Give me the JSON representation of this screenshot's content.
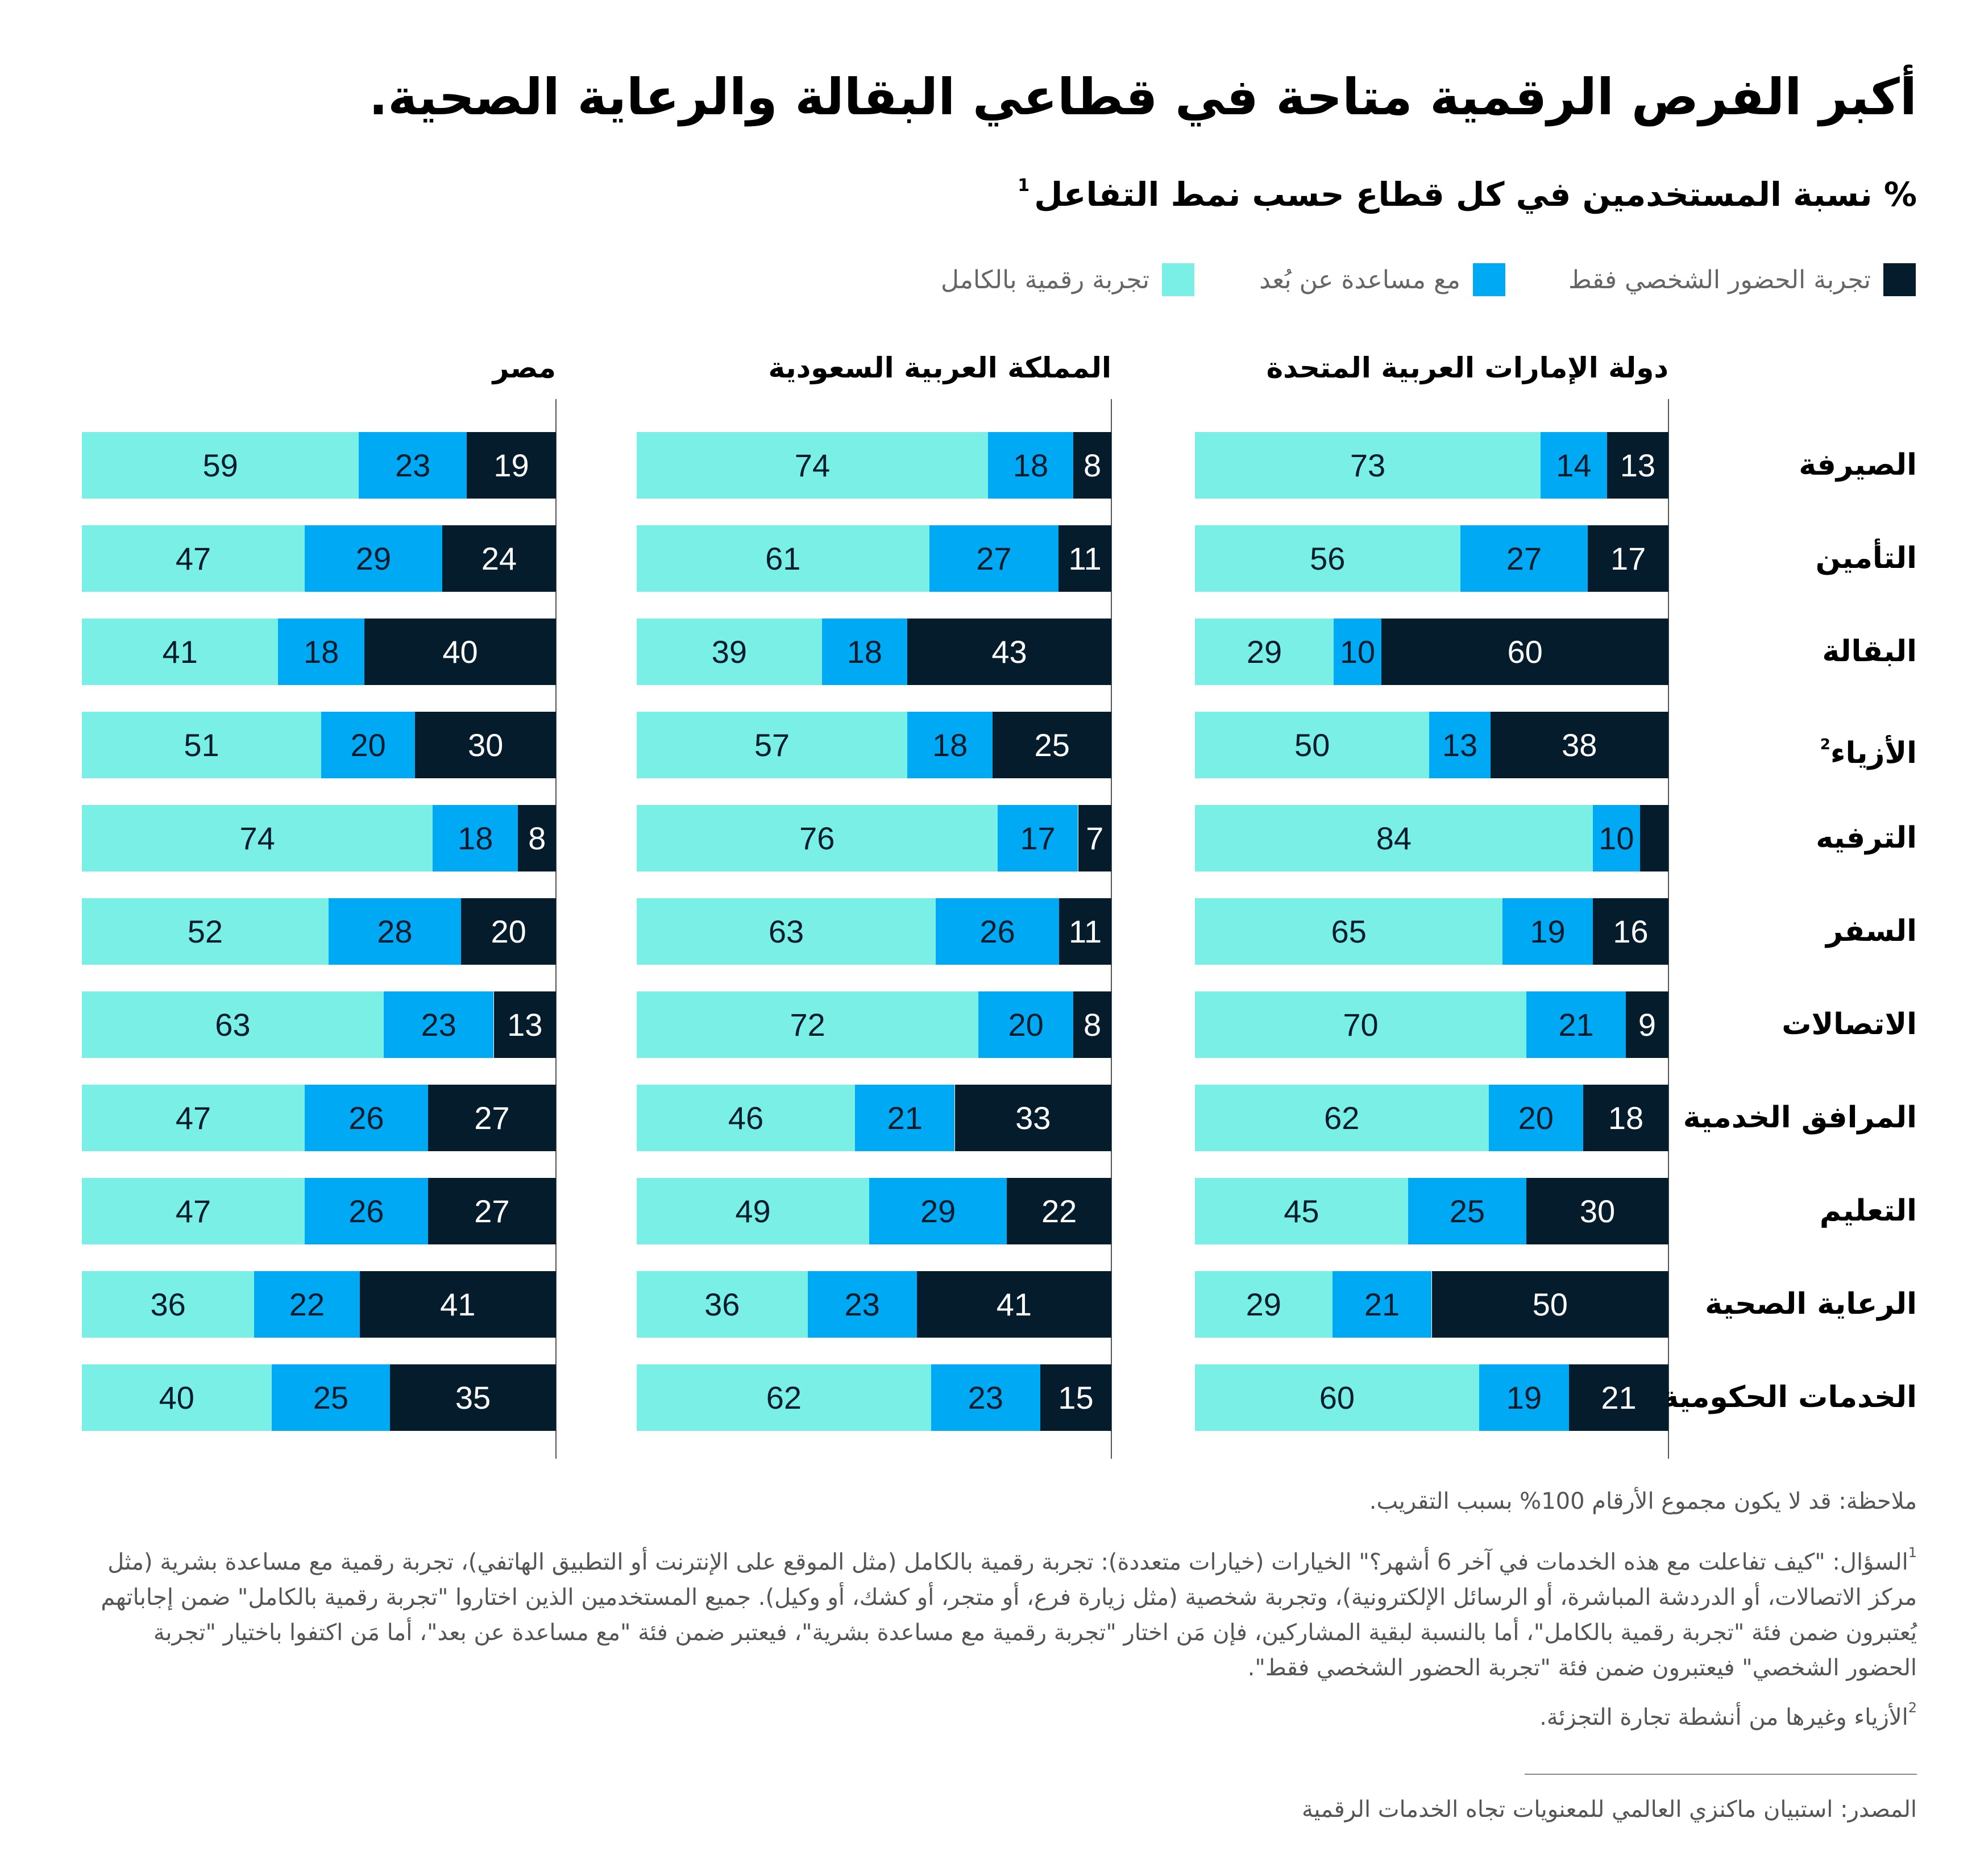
{
  "header": {
    "title": "أكبر الفرص الرقمية متاحة في قطاعي البقالة والرعاية الصحية.",
    "subtitle": "% نسبة المستخدمين في كل قطاع حسب نمط التفاعل",
    "subtitle_footnote_marker": "1"
  },
  "legend": [
    {
      "key": "in_person",
      "label": "تجربة الحضور الشخصي فقط",
      "color": "#051c2c"
    },
    {
      "key": "remote_assist",
      "label": "مع مساعدة عن بُعد",
      "color": "#00a9f4"
    },
    {
      "key": "fully_digital",
      "label": "تجربة رقمية بالكامل",
      "color": "#7aefe6"
    }
  ],
  "chart_data": {
    "type": "bar",
    "orientation": "horizontal",
    "stacked": true,
    "title": "أكبر الفرص الرقمية متاحة في قطاعي البقالة والرعاية الصحية.",
    "subtitle": "% نسبة المستخدمين في كل قطاع حسب نمط التفاعل",
    "xlim": [
      0,
      100
    ],
    "grid": false,
    "legend_position": "top-right",
    "categories": [
      "الصيرفة",
      "التأمين",
      "البقالة",
      "الأزياء",
      "الترفيه",
      "السفر",
      "الاتصالات",
      "المرافق الخدمية",
      "التعليم",
      "الرعاية الصحية",
      "الخدمات الحكومية"
    ],
    "category_footnotes": {
      "3": "2"
    },
    "series_names": [
      "تجربة رقمية بالكامل",
      "مع مساعدة عن بُعد",
      "تجربة الحضور الشخصي فقط"
    ],
    "panels": [
      {
        "name": "دولة الإمارات العربية المتحدة",
        "series": [
          {
            "name": "تجربة رقمية بالكامل",
            "values": [
              73,
              56,
              29,
              50,
              84,
              65,
              70,
              62,
              45,
              29,
              60
            ]
          },
          {
            "name": "مع مساعدة عن بُعد",
            "values": [
              14,
              27,
              10,
              13,
              10,
              19,
              21,
              20,
              25,
              21,
              19
            ]
          },
          {
            "name": "تجربة الحضور الشخصي فقط",
            "values": [
              13,
              17,
              60,
              38,
              null,
              16,
              9,
              18,
              30,
              50,
              21
            ]
          }
        ]
      },
      {
        "name": "المملكة العربية السعودية",
        "series": [
          {
            "name": "تجربة رقمية بالكامل",
            "values": [
              74,
              61,
              39,
              57,
              76,
              63,
              72,
              46,
              49,
              36,
              62
            ]
          },
          {
            "name": "مع مساعدة عن بُعد",
            "values": [
              18,
              27,
              18,
              18,
              17,
              26,
              20,
              21,
              29,
              23,
              23
            ]
          },
          {
            "name": "تجربة الحضور الشخصي فقط",
            "values": [
              8,
              11,
              43,
              25,
              7,
              11,
              8,
              33,
              22,
              41,
              15
            ]
          }
        ]
      },
      {
        "name": "مصر",
        "series": [
          {
            "name": "تجربة رقمية بالكامل",
            "values": [
              59,
              47,
              41,
              51,
              74,
              52,
              63,
              47,
              47,
              36,
              40
            ]
          },
          {
            "name": "مع مساعدة عن بُعد",
            "values": [
              23,
              29,
              18,
              20,
              18,
              28,
              23,
              26,
              26,
              22,
              25
            ]
          },
          {
            "name": "تجربة الحضور الشخصي فقط",
            "values": [
              19,
              24,
              40,
              30,
              8,
              20,
              13,
              27,
              27,
              41,
              35
            ]
          }
        ]
      }
    ]
  },
  "footer": {
    "note": "ملاحظة: قد لا يكون مجموع الأرقام 100% بسبب التقريب.",
    "footnote1_marker": "1",
    "footnote1": "السؤال: \"كيف تفاعلت مع هذه الخدمات في آخر 6 أشهر؟\" الخيارات (خيارات متعددة): تجربة رقمية بالكامل (مثل الموقع على الإنترنت أو التطبيق الهاتفي)، تجربة رقمية مع مساعدة بشرية (مثل مركز الاتصالات، أو الدردشة المباشرة، أو الرسائل الإلكترونية)، وتجربة شخصية (مثل زيارة فرع، أو متجر، أو كشك، أو وكيل). جميع المستخدمين الذين اختاروا \"تجربة رقمية بالكامل\" ضمن إجاباتهم يُعتبرون ضمن فئة \"تجربة رقمية بالكامل\"، أما بالنسبة لبقية المشاركين، فإن مَن اختار \"تجربة رقمية مع مساعدة بشرية\"، فيعتبر ضمن فئة \"مع مساعدة عن بعد\"، أما مَن اكتفوا باختيار \"تجربة الحضور الشخصي\" فيعتبرون ضمن فئة \"تجربة الحضور الشخصي فقط\".",
    "footnote2_marker": "2",
    "footnote2": "الأزياء وغيرها من أنشطة تجارة التجزئة.",
    "source": "المصدر: استبيان ماكنزي العالمي للمعنويات تجاه الخدمات الرقمية"
  }
}
